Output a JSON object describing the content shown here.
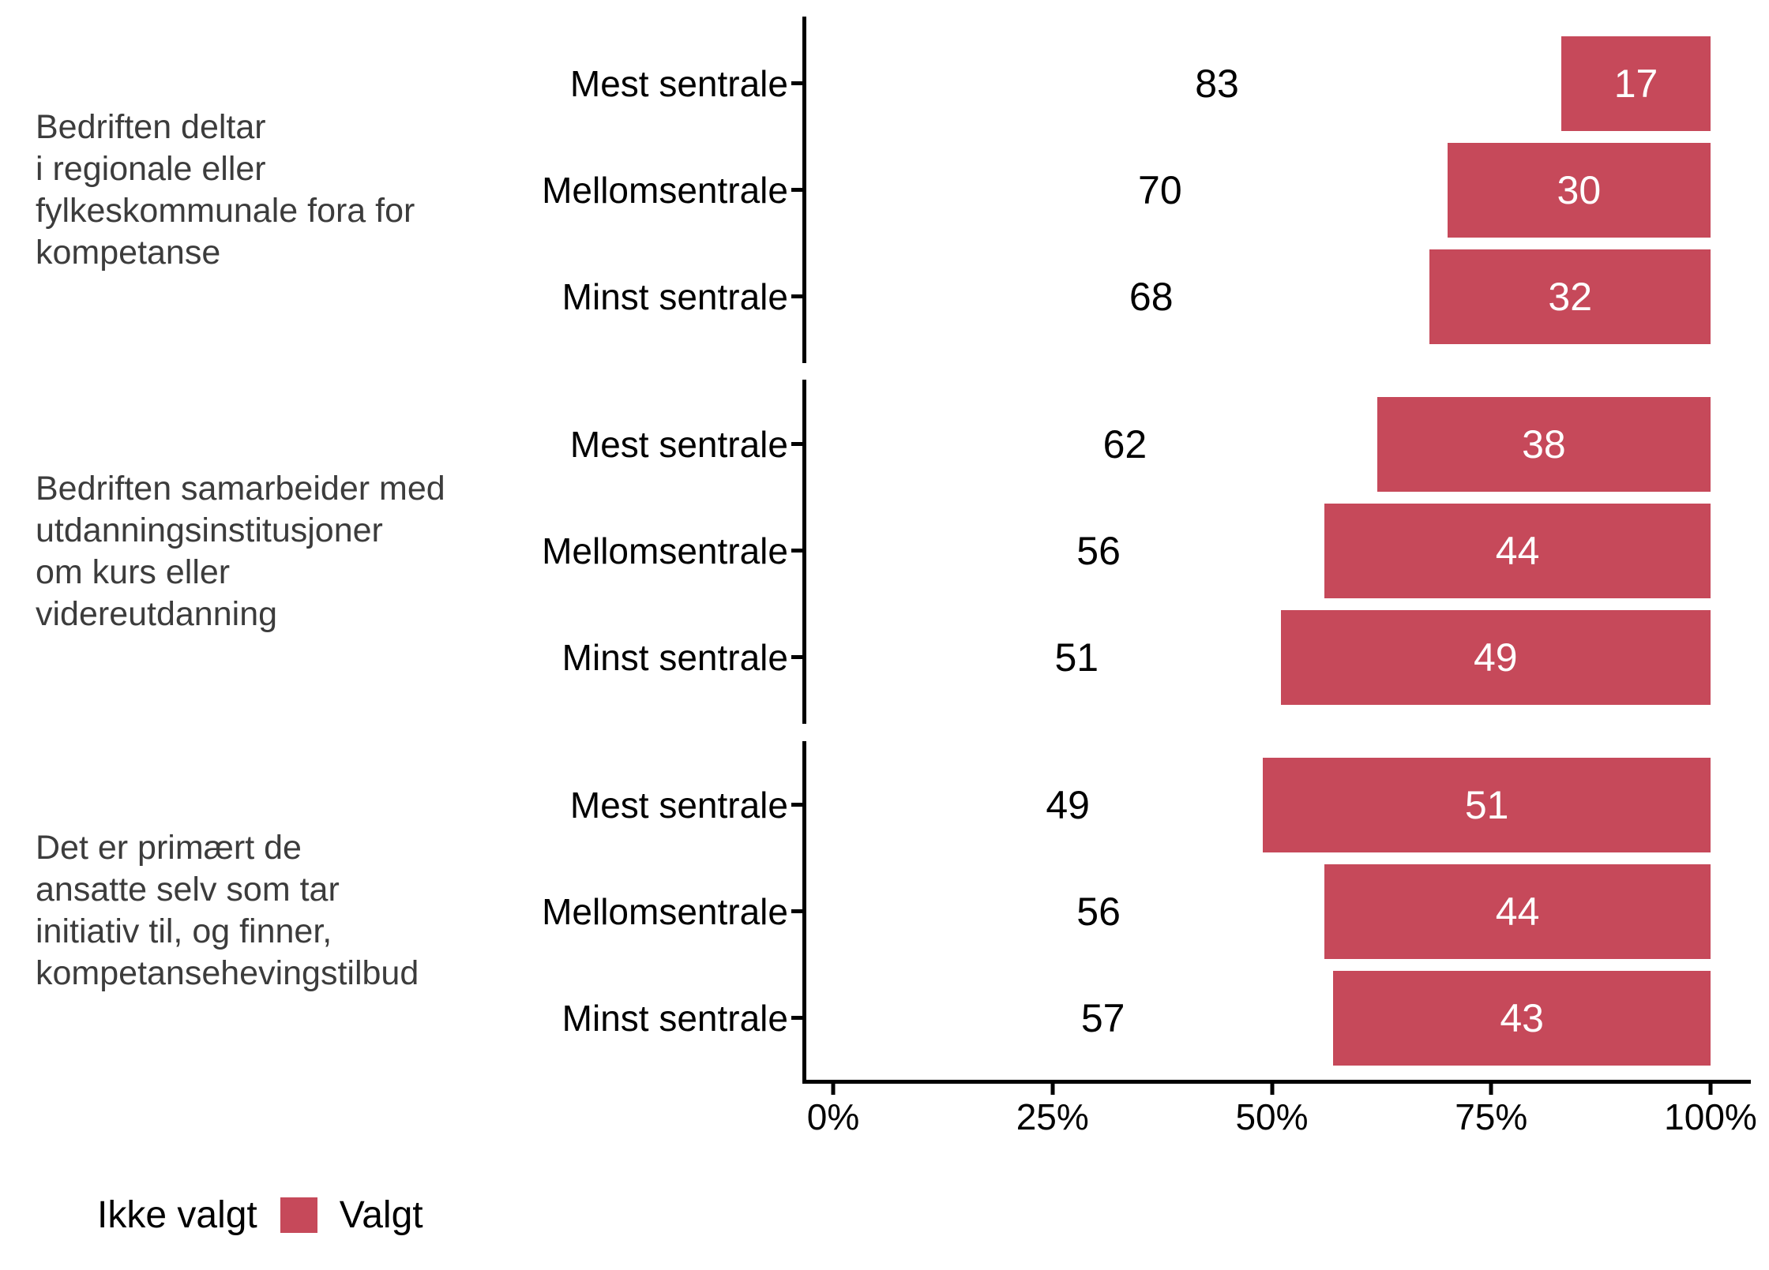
{
  "chart_data": {
    "type": "bar",
    "variant": "horizontal-stacked-100pct-faceted",
    "title": "",
    "xlabel": "",
    "ylabel": "",
    "x_axis": {
      "range": [
        0,
        100
      ],
      "tick_labels": [
        "0%",
        "25%",
        "50%",
        "75%",
        "100%"
      ],
      "tick_values": [
        0,
        25,
        50,
        75,
        100
      ]
    },
    "series_names": [
      "Ikke valgt",
      "Valgt"
    ],
    "facets": [
      {
        "label": "Bedriften deltar\ni regionale eller\nfylkeskommunale fora for\nkompetanse",
        "rows": [
          {
            "category": "Mest sentrale",
            "ikke_valgt": 83,
            "valgt": 17
          },
          {
            "category": "Mellomsentrale",
            "ikke_valgt": 70,
            "valgt": 30
          },
          {
            "category": "Minst sentrale",
            "ikke_valgt": 68,
            "valgt": 32
          }
        ]
      },
      {
        "label": "Bedriften samarbeider med\nutdanningsinstitusjoner\nom kurs eller\nvidereutdanning",
        "rows": [
          {
            "category": "Mest sentrale",
            "ikke_valgt": 62,
            "valgt": 38
          },
          {
            "category": "Mellomsentrale",
            "ikke_valgt": 56,
            "valgt": 44
          },
          {
            "category": "Minst sentrale",
            "ikke_valgt": 51,
            "valgt": 49
          }
        ]
      },
      {
        "label": "Det er primært de\nansatte selv som tar\ninitiativ til, og finner,\nkompetansehevingstilbud",
        "rows": [
          {
            "category": "Mest sentrale",
            "ikke_valgt": 49,
            "valgt": 51
          },
          {
            "category": "Mellomsentrale",
            "ikke_valgt": 56,
            "valgt": 44
          },
          {
            "category": "Minst sentrale",
            "ikke_valgt": 57,
            "valgt": 43
          }
        ]
      }
    ],
    "legend": [
      {
        "label": "Ikke valgt",
        "color": "#FFFFFF"
      },
      {
        "label": "Valgt",
        "color": "#C6495A"
      }
    ],
    "layout_hints": {
      "legend_position": "bottom-left",
      "grid": false,
      "bar_label_color_on_white": "#000000",
      "bar_label_color_on_red": "#FFFFFF"
    }
  },
  "colors": {
    "valgt_red": "#C6495A",
    "facet_text": "#3C3C3C",
    "axis_text": "#000000",
    "background": "#FFFFFF"
  }
}
